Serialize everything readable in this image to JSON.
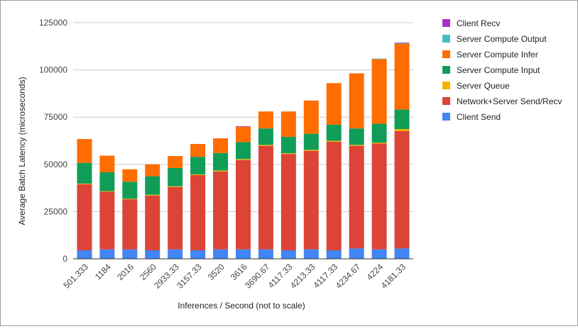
{
  "chart_data": {
    "type": "bar",
    "stacked": true,
    "xlabel": "Inferences / Second (not to scale)",
    "ylabel": "Average Batch Latency (microseconds)",
    "ylim": [
      0,
      125000
    ],
    "yticks": [
      0,
      25000,
      50000,
      75000,
      100000,
      125000
    ],
    "ytick_labels": [
      "0",
      "25000",
      "50000",
      "75000",
      "100000",
      "125000"
    ],
    "grid": true,
    "legend_position": "right",
    "categories": [
      "501.333",
      "1184",
      "2016",
      "2560",
      "2933.33",
      "3157.33",
      "3520",
      "3616",
      "3690.67",
      "4117.33",
      "4213.33",
      "4117.33",
      "4234.67",
      "4224",
      "4181.33"
    ],
    "series": [
      {
        "name": "Client Send",
        "color": "#4285f4",
        "values": [
          4500,
          5000,
          5000,
          4500,
          5000,
          4500,
          5000,
          5000,
          5000,
          4500,
          5000,
          4500,
          5500,
          5000,
          5500
        ]
      },
      {
        "name": "Network+Server Send/Recv",
        "color": "#db4437",
        "values": [
          35000,
          30500,
          26500,
          29000,
          33000,
          39800,
          41200,
          47300,
          54800,
          51000,
          52200,
          57500,
          54300,
          56000,
          62200
        ]
      },
      {
        "name": "Server Queue",
        "color": "#f4b400",
        "values": [
          300,
          300,
          300,
          400,
          400,
          400,
          500,
          500,
          500,
          400,
          500,
          500,
          500,
          500,
          1000
        ]
      },
      {
        "name": "Server Compute Input",
        "color": "#0f9d58",
        "values": [
          11000,
          10000,
          9000,
          9800,
          9700,
          9300,
          9300,
          9000,
          8700,
          8700,
          8500,
          8500,
          8700,
          10000,
          10300
        ]
      },
      {
        "name": "Server Compute Infer",
        "color": "#ff6d01",
        "values": [
          12600,
          8800,
          6600,
          6300,
          6300,
          6800,
          7800,
          8100,
          9000,
          13400,
          17600,
          22000,
          29200,
          34200,
          34900
        ]
      },
      {
        "name": "Server Compute Output",
        "color": "#46bdc6",
        "values": [
          0,
          0,
          0,
          0,
          0,
          0,
          0,
          0,
          0,
          0,
          0,
          0,
          0,
          300,
          300
        ]
      },
      {
        "name": "Client Recv",
        "color": "#ab30c4",
        "values": [
          0,
          0,
          0,
          0,
          0,
          0,
          0,
          300,
          0,
          0,
          0,
          0,
          0,
          0,
          300
        ]
      }
    ]
  }
}
